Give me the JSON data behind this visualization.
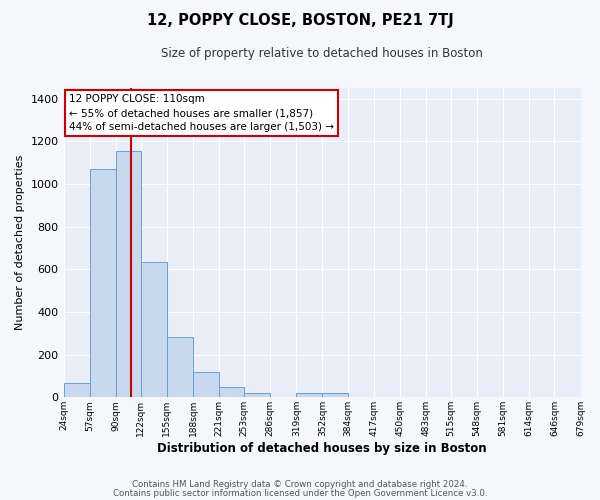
{
  "title": "12, POPPY CLOSE, BOSTON, PE21 7TJ",
  "subtitle": "Size of property relative to detached houses in Boston",
  "xlabel": "Distribution of detached houses by size in Boston",
  "ylabel": "Number of detached properties",
  "bar_color": "#c8d9ee",
  "bar_edge_color": "#6aa0cc",
  "plot_bg_color": "#e8eef8",
  "fig_bg_color": "#f5f7fb",
  "grid_color": "#ffffff",
  "vline_x": 110,
  "vline_color": "#cc0000",
  "annotation_title": "12 POPPY CLOSE: 110sqm",
  "annotation_line1": "← 55% of detached houses are smaller (1,857)",
  "annotation_line2": "44% of semi-detached houses are larger (1,503) →",
  "annotation_box_color": "#ffffff",
  "annotation_box_edge": "#cc0000",
  "bin_edges": [
    24,
    57,
    90,
    122,
    155,
    188,
    221,
    253,
    286,
    319,
    352,
    384,
    417,
    450,
    483,
    515,
    548,
    581,
    614,
    646,
    679
  ],
  "counts": [
    65,
    1070,
    1155,
    635,
    285,
    120,
    47,
    20,
    0,
    20,
    20,
    0,
    0,
    0,
    0,
    0,
    0,
    0,
    0,
    0
  ],
  "ylim": [
    0,
    1450
  ],
  "yticks": [
    0,
    200,
    400,
    600,
    800,
    1000,
    1200,
    1400
  ],
  "footnote1": "Contains HM Land Registry data © Crown copyright and database right 2024.",
  "footnote2": "Contains public sector information licensed under the Open Government Licence v3.0."
}
